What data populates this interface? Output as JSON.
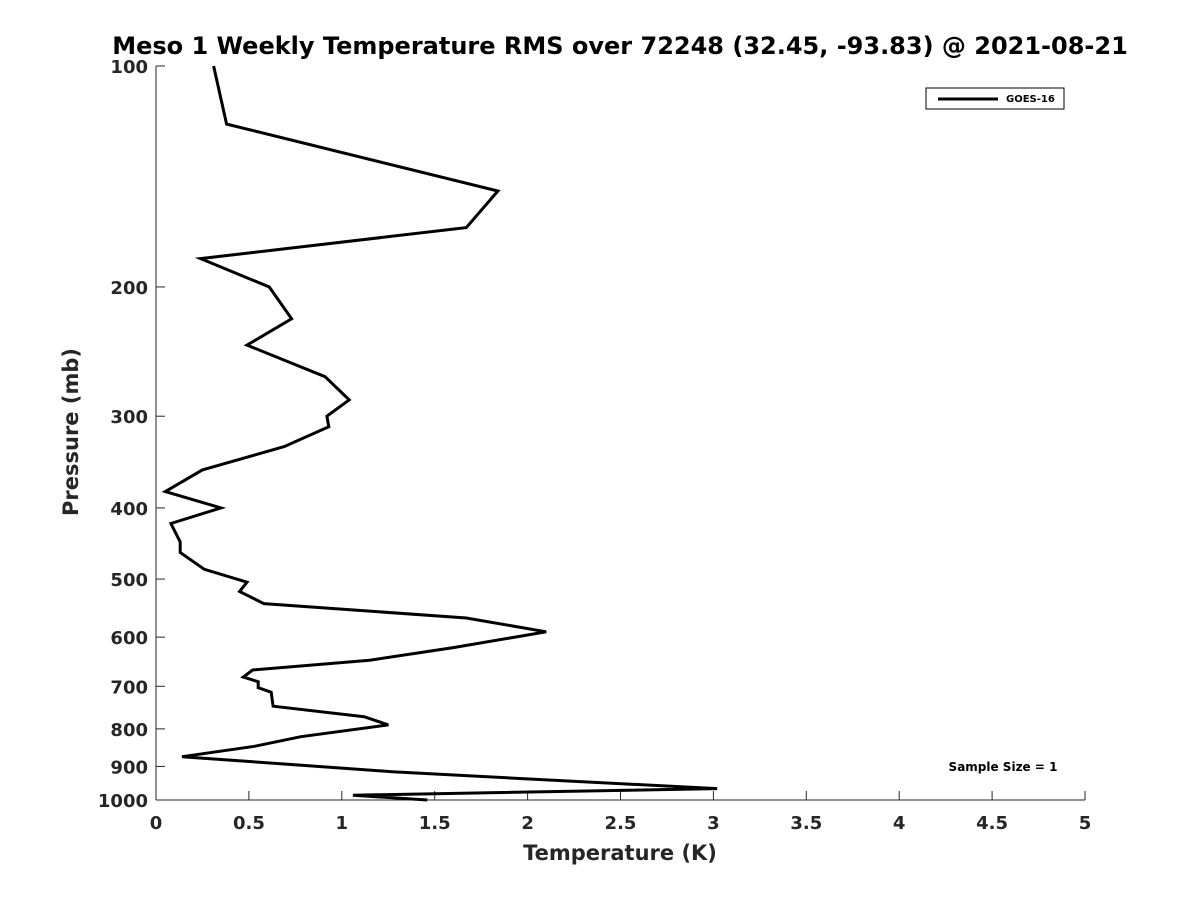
{
  "chart_data": {
    "type": "line",
    "title": "Meso 1 Weekly Temperature RMS over 72248 (32.45, -93.83) @ 2021-08-21",
    "xlabel": "Temperature (K)",
    "ylabel": "Pressure (mb)",
    "xlim": [
      0,
      5
    ],
    "ylim": [
      1000,
      100
    ],
    "y_scale": "log",
    "y_reversed": true,
    "x_ticks": [
      0,
      0.5,
      1,
      1.5,
      2,
      2.5,
      3,
      3.5,
      4,
      4.5,
      5
    ],
    "x_tick_labels": [
      "0",
      "0.5",
      "1",
      "1.5",
      "2",
      "2.5",
      "3",
      "3.5",
      "4",
      "4.5",
      "5"
    ],
    "y_ticks": [
      100,
      200,
      300,
      400,
      500,
      600,
      700,
      800,
      900,
      1000
    ],
    "y_tick_labels": [
      "100",
      "200",
      "300",
      "400",
      "500",
      "600",
      "700",
      "800",
      "900",
      "1000"
    ],
    "grid": false,
    "legend_position": "top-right",
    "annotation": "Sample Size = 1",
    "series": [
      {
        "name": "GOES-16",
        "color": "#000000",
        "x": [
          0.31,
          0.38,
          1.84,
          1.67,
          0.24,
          0.61,
          0.73,
          0.49,
          0.91,
          1.04,
          0.92,
          0.93,
          0.69,
          0.25,
          0.05,
          0.35,
          0.08,
          0.13,
          0.13,
          0.26,
          0.49,
          0.45,
          0.58,
          1.67,
          2.1,
          1.6,
          1.15,
          0.52,
          0.47,
          0.55,
          0.55,
          0.62,
          0.63,
          1.12,
          1.25,
          0.78,
          0.53,
          0.14,
          1.27,
          1.97,
          3.02,
          1.06,
          1.46
        ],
        "y": [
          100,
          120,
          148,
          166,
          183,
          200,
          221,
          240,
          265,
          285,
          300,
          310,
          330,
          355,
          380,
          400,
          420,
          445,
          460,
          485,
          505,
          520,
          540,
          565,
          590,
          620,
          645,
          665,
          680,
          690,
          703,
          713,
          745,
          770,
          790,
          820,
          845,
          873,
          915,
          935,
          965,
          985,
          1000
        ]
      }
    ]
  }
}
